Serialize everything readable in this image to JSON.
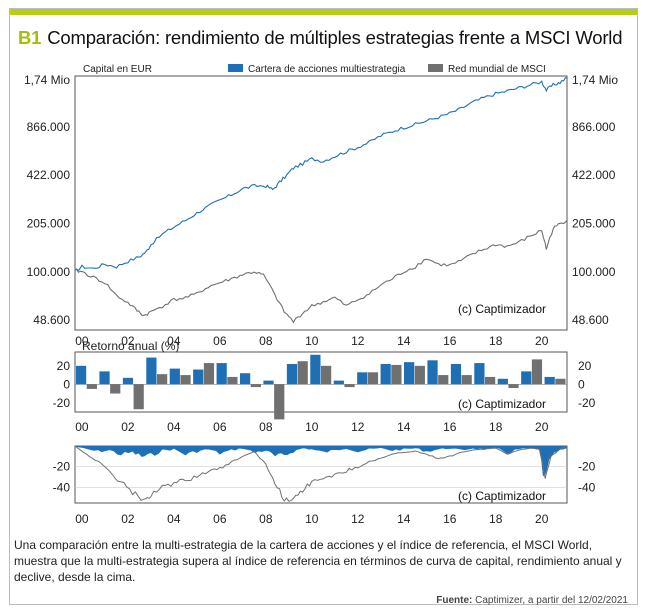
{
  "header": {
    "tag": "B1",
    "title": "Comparación: rendimiento de múltiples estrategias frente a MSCI World"
  },
  "panel1": {
    "ylabel": "Capital en EUR",
    "legend": [
      {
        "name": "Cartera de acciones multiestrategia",
        "color": "#1f6fb5"
      },
      {
        "name": "Red mundial de MSCI",
        "color": "#707070"
      }
    ],
    "watermark": "(c) Captimizador"
  },
  "panel2": {
    "title": "Retorno anual (%)",
    "watermark": "(c) Captimizador"
  },
  "panel3": {
    "watermark": "(c) Captimizador"
  },
  "caption": "Una comparación entre la multi-estrategia de la cartera de acciones y el índice de referencia, el MSCI World, muestra que la multi-estrategia supera al índice de referencia en términos de curva de capital, rendimiento anual y declive, desde la cima.",
  "source": {
    "label": "Fuente:",
    "text": "Captimizer, a partir del 12/02/2021"
  },
  "colors": {
    "strategy": "#1f6fb5",
    "benchmark": "#707070",
    "accent": "#b7cc1b"
  },
  "chart_data": [
    {
      "type": "line",
      "log_scale": true,
      "ylabel": "Capital en EUR",
      "y_tick_labels": [
        "1,74 Mio",
        "866.000",
        "422.000",
        "205.000",
        "100.000",
        "48.600"
      ],
      "y_tick_values": [
        1740000,
        866000,
        422000,
        205000,
        100000,
        48600
      ],
      "x_tick_labels": [
        "00",
        "02",
        "04",
        "06",
        "08",
        "10",
        "12",
        "14",
        "16",
        "18",
        "20"
      ],
      "xlim": [
        1999.7,
        2021.1
      ],
      "ylim": [
        42000,
        1850000
      ],
      "series": [
        {
          "name": "Cartera de acciones multiestrategia",
          "x": [
            1999.7,
            2000.0,
            2000.5,
            2001.0,
            2001.5,
            2002.0,
            2002.5,
            2002.8,
            2003.0,
            2003.5,
            2004.0,
            2004.5,
            2005.0,
            2005.5,
            2006.0,
            2006.5,
            2007.0,
            2007.5,
            2008.0,
            2008.3,
            2008.6,
            2008.9,
            2009.2,
            2009.6,
            2010.0,
            2010.5,
            2011.0,
            2011.5,
            2012.0,
            2012.5,
            2013.0,
            2013.5,
            2014.0,
            2014.5,
            2015.0,
            2015.5,
            2016.0,
            2016.5,
            2017.0,
            2017.5,
            2018.0,
            2018.5,
            2019.0,
            2019.5,
            2020.0,
            2020.2,
            2020.5,
            2020.8,
            2021.1
          ],
          "values": [
            100000,
            108000,
            105000,
            112000,
            108000,
            117000,
            125000,
            135000,
            150000,
            175000,
            195000,
            215000,
            240000,
            265000,
            290000,
            315000,
            345000,
            360000,
            360000,
            340000,
            380000,
            420000,
            470000,
            500000,
            540000,
            520000,
            560000,
            600000,
            640000,
            690000,
            760000,
            810000,
            860000,
            900000,
            950000,
            1000000,
            1060000,
            1140000,
            1250000,
            1340000,
            1420000,
            1480000,
            1550000,
            1620000,
            1700000,
            1500000,
            1620000,
            1680000,
            1800000
          ]
        },
        {
          "name": "Red mundial de MSCI",
          "x": [
            1999.7,
            2000.0,
            2000.5,
            2001.0,
            2001.5,
            2002.0,
            2002.4,
            2002.7,
            2003.0,
            2003.5,
            2004.0,
            2004.5,
            2005.0,
            2005.5,
            2006.0,
            2006.5,
            2007.0,
            2007.5,
            2007.9,
            2008.4,
            2008.8,
            2009.2,
            2009.6,
            2010.0,
            2010.5,
            2011.0,
            2011.5,
            2012.0,
            2012.5,
            2013.0,
            2013.5,
            2014.0,
            2014.5,
            2015.0,
            2015.5,
            2016.0,
            2016.5,
            2017.0,
            2017.5,
            2018.0,
            2018.5,
            2019.0,
            2019.5,
            2020.0,
            2020.2,
            2020.5,
            2020.8,
            2021.1
          ],
          "values": [
            102000,
            100000,
            92000,
            85000,
            70000,
            63000,
            56000,
            52000,
            55000,
            60000,
            66000,
            68000,
            72000,
            80000,
            85000,
            90000,
            96000,
            100000,
            95000,
            70000,
            55000,
            47500,
            54000,
            60000,
            64000,
            68000,
            60000,
            66000,
            72000,
            82000,
            90000,
            100000,
            108000,
            122000,
            112000,
            110000,
            118000,
            130000,
            140000,
            150000,
            146000,
            155000,
            170000,
            185000,
            140000,
            190000,
            205000,
            215000
          ]
        }
      ]
    },
    {
      "type": "bar",
      "title": "Retorno anual (%)",
      "ylim": [
        -30,
        35
      ],
      "y_ticks": [
        20,
        0,
        -20
      ],
      "x_tick_labels": [
        "00",
        "02",
        "04",
        "06",
        "08",
        "10",
        "12",
        "14",
        "16",
        "18",
        "20"
      ],
      "categories": [
        "2000",
        "2001",
        "2002",
        "2003",
        "2004",
        "2005",
        "2006",
        "2007",
        "2008",
        "2009",
        "2010",
        "2011",
        "2012",
        "2013",
        "2014",
        "2015",
        "2016",
        "2017",
        "2018",
        "2019",
        "2020"
      ],
      "series": [
        {
          "name": "Cartera de acciones multiestrategia",
          "values": [
            20,
            14,
            7,
            29,
            17,
            16,
            23,
            12,
            4,
            22,
            32,
            4,
            13,
            22,
            24,
            26,
            22,
            23,
            6,
            14,
            8
          ]
        },
        {
          "name": "Red mundial de MSCI",
          "values": [
            -5,
            -10,
            -27,
            11,
            10,
            23,
            8,
            -3,
            -38,
            25,
            20,
            -3,
            13,
            21,
            20,
            10,
            10,
            8,
            -4,
            27,
            6
          ]
        }
      ]
    },
    {
      "type": "area",
      "ylim": [
        -55,
        0
      ],
      "y_ticks": [
        -20,
        -40
      ],
      "x_tick_labels": [
        "00",
        "02",
        "04",
        "06",
        "08",
        "10",
        "12",
        "14",
        "16",
        "18",
        "20"
      ],
      "series": [
        {
          "name": "Cartera de acciones multiestrategia",
          "x": [
            1999.7,
            2000.2,
            2000.7,
            2001.2,
            2001.7,
            2002.2,
            2002.6,
            2003.0,
            2003.5,
            2004.0,
            2004.5,
            2005.0,
            2005.5,
            2006.0,
            2006.5,
            2007.0,
            2007.5,
            2008.0,
            2008.4,
            2008.8,
            2009.2,
            2009.6,
            2010.0,
            2010.5,
            2011.0,
            2011.5,
            2012.0,
            2012.5,
            2013.0,
            2013.5,
            2014.0,
            2014.5,
            2015.0,
            2015.5,
            2016.0,
            2016.5,
            2017.0,
            2017.5,
            2018.0,
            2018.5,
            2019.0,
            2019.5,
            2019.9,
            2020.15,
            2020.4,
            2020.8,
            2021.1
          ],
          "values": [
            0,
            -3,
            -5,
            -4,
            -8,
            -6,
            -10,
            -9,
            -4,
            -3,
            -8,
            -5,
            -3,
            -7,
            -4,
            -2,
            -6,
            -4,
            -10,
            -9,
            -5,
            -2,
            -3,
            -6,
            -4,
            -2,
            -5,
            -3,
            -2,
            -4,
            -3,
            -2,
            -5,
            -3,
            -2,
            -4,
            -2,
            -3,
            -2,
            -6,
            -3,
            -2,
            -4,
            -35,
            -10,
            -4,
            -2
          ]
        },
        {
          "name": "Red mundial de MSCI",
          "x": [
            1999.7,
            2000.2,
            2000.7,
            2001.2,
            2001.7,
            2002.2,
            2002.7,
            2003.0,
            2003.5,
            2004.0,
            2004.5,
            2005.0,
            2005.5,
            2006.0,
            2006.5,
            2007.0,
            2007.5,
            2008.0,
            2008.4,
            2008.8,
            2009.2,
            2009.6,
            2010.0,
            2010.5,
            2011.0,
            2011.5,
            2012.0,
            2012.5,
            2013.0,
            2013.5,
            2014.0,
            2014.5,
            2015.0,
            2015.5,
            2016.0,
            2016.5,
            2017.0,
            2017.5,
            2018.0,
            2018.5,
            2019.0,
            2019.5,
            2019.9,
            2020.15,
            2020.4,
            2020.8,
            2021.1
          ],
          "values": [
            0,
            -8,
            -15,
            -25,
            -35,
            -45,
            -52,
            -48,
            -40,
            -36,
            -33,
            -30,
            -24,
            -22,
            -16,
            -10,
            -5,
            -18,
            -35,
            -52,
            -50,
            -42,
            -35,
            -30,
            -28,
            -24,
            -20,
            -15,
            -12,
            -8,
            -6,
            -5,
            -8,
            -12,
            -10,
            -6,
            -4,
            -3,
            -2,
            -8,
            -4,
            -2,
            -3,
            -30,
            -10,
            -3,
            0
          ]
        }
      ]
    }
  ]
}
